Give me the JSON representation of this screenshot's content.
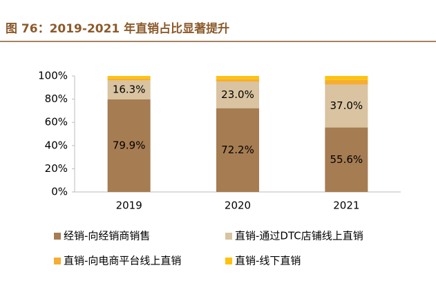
{
  "chart_data": {
    "type": "stacked_bar",
    "title": "图 76：2019-2021 年直销占比显著提升",
    "categories": [
      "2019",
      "2020",
      "2021"
    ],
    "series": [
      {
        "name": "经销-向经销商销售",
        "color": "#a67c52",
        "values": [
          79.9,
          72.2,
          55.6
        ],
        "value_labels": [
          "79.9%",
          "72.2%",
          "55.6%"
        ]
      },
      {
        "name": "直销-通过DTC店铺线上直销",
        "color": "#d9c3a0",
        "values": [
          16.3,
          23.0,
          37.0
        ],
        "value_labels": [
          "16.3%",
          "23.0%",
          "37.0%"
        ]
      },
      {
        "name": "直销-向电商平台线上直销",
        "color": "#f5ad32",
        "values": [
          1.5,
          2.0,
          4.0
        ]
      },
      {
        "name": "直销-线下直销",
        "color": "#ffc20e",
        "values": [
          2.3,
          2.8,
          3.4
        ]
      }
    ],
    "ylim": [
      0,
      100
    ],
    "yticks": [
      {
        "value": 0,
        "label": "0%"
      },
      {
        "value": 20,
        "label": "20%"
      },
      {
        "value": 40,
        "label": "40%"
      },
      {
        "value": 60,
        "label": "60%"
      },
      {
        "value": 80,
        "label": "80%"
      },
      {
        "value": 100,
        "label": "100%"
      }
    ]
  }
}
